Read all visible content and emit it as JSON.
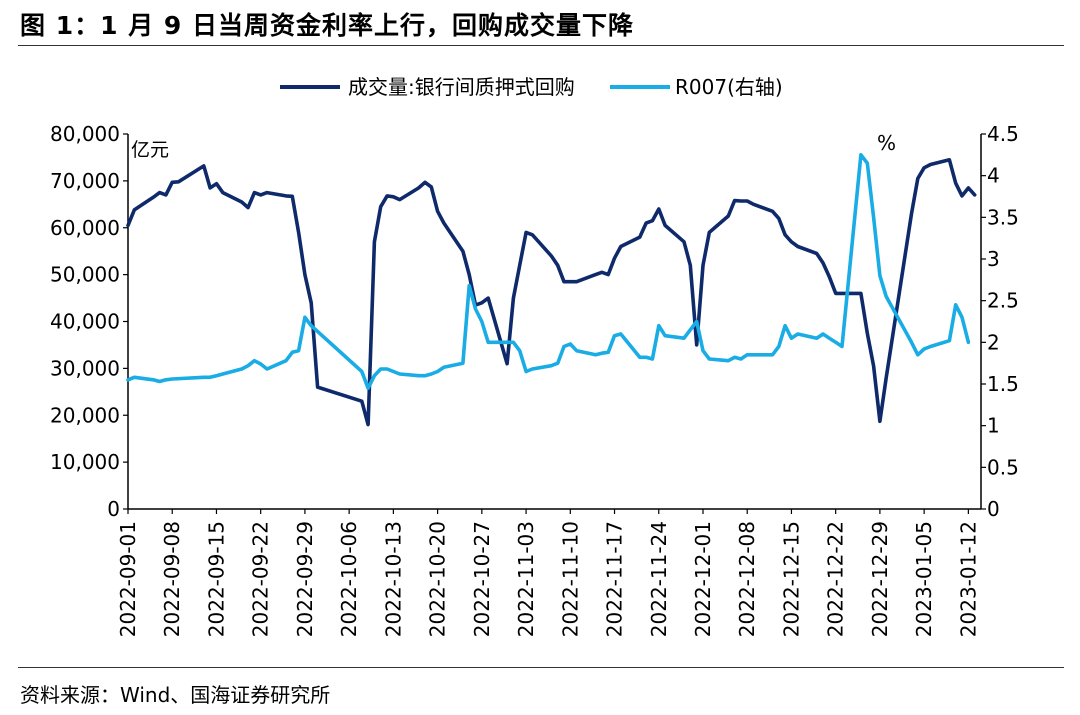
{
  "page": {
    "title": "图 1：1 月 9 日当周资金利率上行，回购成交量下降",
    "source": "资料来源：Wind、国海证券研究所"
  },
  "colors": {
    "volume": "#0f2a6b",
    "r007": "#1aace5",
    "axis": "#000000"
  },
  "chart_data": {
    "type": "line",
    "title": "",
    "left_axis": {
      "unit_label": "亿元",
      "range": [
        0,
        80000
      ],
      "ticks": [
        "0",
        "10,000",
        "20,000",
        "30,000",
        "40,000",
        "50,000",
        "60,000",
        "70,000",
        "80,000"
      ]
    },
    "right_axis": {
      "unit_label": "%",
      "range": [
        0,
        4.5
      ],
      "ticks": [
        "0",
        "0.5",
        "1",
        "1.5",
        "2",
        "2.5",
        "3",
        "3.5",
        "4",
        "4.5"
      ]
    },
    "x_range": [
      "2022-09-01",
      "2023-01-14"
    ],
    "x_ticks": [
      "2022-09-01",
      "2022-09-08",
      "2022-09-15",
      "2022-09-22",
      "2022-09-29",
      "2022-10-06",
      "2022-10-13",
      "2022-10-20",
      "2022-10-27",
      "2022-11-03",
      "2022-11-10",
      "2022-11-17",
      "2022-11-24",
      "2022-12-01",
      "2022-12-08",
      "2022-12-15",
      "2022-12-22",
      "2022-12-29",
      "2023-01-05",
      "2023-01-12"
    ],
    "legend_position": "top-center",
    "series": [
      {
        "name": "成交量:银行间质押式回购",
        "axis": "left",
        "points": [
          [
            "2022-09-01",
            60500
          ],
          [
            "2022-09-02",
            63800
          ],
          [
            "2022-09-05",
            66500
          ],
          [
            "2022-09-06",
            67500
          ],
          [
            "2022-09-07",
            67000
          ],
          [
            "2022-09-08",
            69700
          ],
          [
            "2022-09-09",
            69800
          ],
          [
            "2022-09-13",
            73200
          ],
          [
            "2022-09-14",
            68500
          ],
          [
            "2022-09-15",
            69400
          ],
          [
            "2022-09-16",
            67500
          ],
          [
            "2022-09-19",
            65500
          ],
          [
            "2022-09-20",
            64300
          ],
          [
            "2022-09-21",
            67500
          ],
          [
            "2022-09-22",
            67000
          ],
          [
            "2022-09-23",
            67500
          ],
          [
            "2022-09-26",
            66800
          ],
          [
            "2022-09-27",
            66700
          ],
          [
            "2022-09-28",
            59000
          ],
          [
            "2022-09-29",
            50000
          ],
          [
            "2022-09-30",
            44000
          ],
          [
            "2022-10-01",
            26000
          ],
          [
            "2022-10-08",
            23000
          ],
          [
            "2022-10-09",
            18000
          ],
          [
            "2022-10-10",
            57000
          ],
          [
            "2022-10-11",
            64500
          ],
          [
            "2022-10-12",
            66800
          ],
          [
            "2022-10-13",
            66600
          ],
          [
            "2022-10-14",
            66000
          ],
          [
            "2022-10-17",
            68500
          ],
          [
            "2022-10-18",
            69700
          ],
          [
            "2022-10-19",
            68700
          ],
          [
            "2022-10-20",
            63500
          ],
          [
            "2022-10-21",
            61000
          ],
          [
            "2022-10-24",
            55000
          ],
          [
            "2022-10-25",
            50000
          ],
          [
            "2022-10-26",
            43500
          ],
          [
            "2022-10-27",
            44000
          ],
          [
            "2022-10-28",
            45000
          ],
          [
            "2022-10-31",
            31000
          ],
          [
            "2022-11-01",
            45000
          ],
          [
            "2022-11-02",
            52000
          ],
          [
            "2022-11-03",
            59000
          ],
          [
            "2022-11-04",
            58500
          ],
          [
            "2022-11-07",
            54000
          ],
          [
            "2022-11-08",
            52000
          ],
          [
            "2022-11-09",
            48500
          ],
          [
            "2022-11-10",
            48500
          ],
          [
            "2022-11-11",
            48500
          ],
          [
            "2022-11-14",
            50000
          ],
          [
            "2022-11-15",
            50500
          ],
          [
            "2022-11-16",
            50000
          ],
          [
            "2022-11-17",
            53500
          ],
          [
            "2022-11-18",
            56000
          ],
          [
            "2022-11-21",
            58000
          ],
          [
            "2022-11-22",
            61000
          ],
          [
            "2022-11-23",
            61500
          ],
          [
            "2022-11-24",
            64000
          ],
          [
            "2022-11-25",
            60500
          ],
          [
            "2022-11-28",
            57000
          ],
          [
            "2022-11-29",
            52000
          ],
          [
            "2022-11-30",
            35000
          ],
          [
            "2022-12-01",
            52000
          ],
          [
            "2022-12-02",
            59000
          ],
          [
            "2022-12-05",
            62500
          ],
          [
            "2022-12-06",
            65800
          ],
          [
            "2022-12-07",
            65700
          ],
          [
            "2022-12-08",
            65700
          ],
          [
            "2022-12-09",
            65000
          ],
          [
            "2022-12-12",
            63500
          ],
          [
            "2022-12-13",
            62000
          ],
          [
            "2022-12-14",
            58500
          ],
          [
            "2022-12-15",
            57000
          ],
          [
            "2022-12-16",
            56000
          ],
          [
            "2022-12-19",
            54500
          ],
          [
            "2022-12-20",
            52500
          ],
          [
            "2022-12-21",
            49500
          ],
          [
            "2022-12-22",
            46000
          ],
          [
            "2022-12-23",
            46000
          ],
          [
            "2022-12-26",
            46000
          ],
          [
            "2022-12-27",
            37500
          ],
          [
            "2022-12-28",
            30500
          ],
          [
            "2022-12-29",
            18700
          ],
          [
            "2022-12-30",
            28000
          ],
          [
            "2023-01-03",
            63000
          ],
          [
            "2023-01-04",
            70500
          ],
          [
            "2023-01-05",
            72800
          ],
          [
            "2023-01-06",
            73500
          ],
          [
            "2023-01-09",
            74500
          ],
          [
            "2023-01-10",
            69500
          ],
          [
            "2023-01-11",
            66800
          ],
          [
            "2023-01-12",
            68500
          ],
          [
            "2023-01-13",
            67000
          ]
        ]
      },
      {
        "name": "R007(右轴)",
        "axis": "right",
        "points": [
          [
            "2022-09-01",
            1.55
          ],
          [
            "2022-09-02",
            1.58
          ],
          [
            "2022-09-05",
            1.55
          ],
          [
            "2022-09-06",
            1.53
          ],
          [
            "2022-09-07",
            1.55
          ],
          [
            "2022-09-08",
            1.56
          ],
          [
            "2022-09-13",
            1.58
          ],
          [
            "2022-09-14",
            1.58
          ],
          [
            "2022-09-15",
            1.6
          ],
          [
            "2022-09-16",
            1.62
          ],
          [
            "2022-09-19",
            1.68
          ],
          [
            "2022-09-20",
            1.72
          ],
          [
            "2022-09-21",
            1.78
          ],
          [
            "2022-09-22",
            1.74
          ],
          [
            "2022-09-23",
            1.68
          ],
          [
            "2022-09-26",
            1.78
          ],
          [
            "2022-09-27",
            1.88
          ],
          [
            "2022-09-28",
            1.9
          ],
          [
            "2022-09-29",
            2.3
          ],
          [
            "2022-09-30",
            2.2
          ],
          [
            "2022-10-08",
            1.65
          ],
          [
            "2022-10-09",
            1.45
          ],
          [
            "2022-10-10",
            1.6
          ],
          [
            "2022-10-11",
            1.68
          ],
          [
            "2022-10-12",
            1.68
          ],
          [
            "2022-10-13",
            1.65
          ],
          [
            "2022-10-14",
            1.62
          ],
          [
            "2022-10-17",
            1.6
          ],
          [
            "2022-10-18",
            1.6
          ],
          [
            "2022-10-19",
            1.62
          ],
          [
            "2022-10-20",
            1.65
          ],
          [
            "2022-10-21",
            1.7
          ],
          [
            "2022-10-24",
            1.75
          ],
          [
            "2022-10-25",
            2.68
          ],
          [
            "2022-10-26",
            2.4
          ],
          [
            "2022-10-27",
            2.25
          ],
          [
            "2022-10-28",
            2.0
          ],
          [
            "2022-10-31",
            2.0
          ],
          [
            "2022-11-01",
            2.0
          ],
          [
            "2022-11-02",
            1.9
          ],
          [
            "2022-11-03",
            1.65
          ],
          [
            "2022-11-04",
            1.68
          ],
          [
            "2022-11-07",
            1.72
          ],
          [
            "2022-11-08",
            1.75
          ],
          [
            "2022-11-09",
            1.95
          ],
          [
            "2022-11-10",
            1.98
          ],
          [
            "2022-11-11",
            1.9
          ],
          [
            "2022-11-14",
            1.85
          ],
          [
            "2022-11-15",
            1.87
          ],
          [
            "2022-11-16",
            1.88
          ],
          [
            "2022-11-17",
            2.08
          ],
          [
            "2022-11-18",
            2.1
          ],
          [
            "2022-11-21",
            1.82
          ],
          [
            "2022-11-22",
            1.82
          ],
          [
            "2022-11-23",
            1.8
          ],
          [
            "2022-11-24",
            2.2
          ],
          [
            "2022-11-25",
            2.08
          ],
          [
            "2022-11-28",
            2.05
          ],
          [
            "2022-11-29",
            2.15
          ],
          [
            "2022-11-30",
            2.25
          ],
          [
            "2022-12-01",
            1.9
          ],
          [
            "2022-12-02",
            1.8
          ],
          [
            "2022-12-05",
            1.78
          ],
          [
            "2022-12-06",
            1.82
          ],
          [
            "2022-12-07",
            1.8
          ],
          [
            "2022-12-08",
            1.85
          ],
          [
            "2022-12-09",
            1.85
          ],
          [
            "2022-12-12",
            1.85
          ],
          [
            "2022-12-13",
            1.95
          ],
          [
            "2022-12-14",
            2.2
          ],
          [
            "2022-12-15",
            2.05
          ],
          [
            "2022-12-16",
            2.1
          ],
          [
            "2022-12-19",
            2.05
          ],
          [
            "2022-12-20",
            2.1
          ],
          [
            "2022-12-21",
            2.05
          ],
          [
            "2022-12-22",
            2.0
          ],
          [
            "2022-12-23",
            1.95
          ],
          [
            "2022-12-26",
            4.25
          ],
          [
            "2022-12-27",
            4.15
          ],
          [
            "2022-12-28",
            3.5
          ],
          [
            "2022-12-29",
            2.8
          ],
          [
            "2022-12-30",
            2.55
          ],
          [
            "2023-01-03",
            2.0
          ],
          [
            "2023-01-04",
            1.85
          ],
          [
            "2023-01-05",
            1.92
          ],
          [
            "2023-01-06",
            1.95
          ],
          [
            "2023-01-09",
            2.02
          ],
          [
            "2023-01-10",
            2.45
          ],
          [
            "2023-01-11",
            2.3
          ],
          [
            "2023-01-12",
            2.0
          ]
        ]
      }
    ]
  }
}
